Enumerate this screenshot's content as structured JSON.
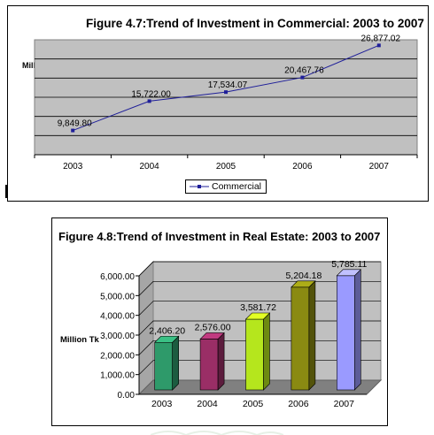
{
  "charts": [
    {
      "title": "Figure 4.7:Trend of Investment in Commercial: 2003 to 2007",
      "ylabel": "Million Taka",
      "legend": "Commercial"
    },
    {
      "title": "Figure 4.8:Trend of Investment in Real Estate: 2003 to 2007",
      "ylabel": "Million Tk"
    }
  ],
  "chart_data": [
    {
      "type": "line",
      "title": "Figure 4.7:Trend of Investment in Commercial: 2003 to 2007",
      "xlabel": "",
      "ylabel": "Million Taka",
      "categories": [
        "2003",
        "2004",
        "2005",
        "2006",
        "2007"
      ],
      "series": [
        {
          "name": "Commercial",
          "values": [
            9849.8,
            15722.0,
            17534.07,
            20467.76,
            26877.02
          ],
          "labels": [
            "9,849.80",
            "15,722.00",
            "17,534.07",
            "20,467.76",
            "26,877.02"
          ],
          "color": "#1f1f99"
        }
      ],
      "ylim": [
        5000,
        28000
      ],
      "grid": true,
      "plot_background": "#c0c0c0",
      "legend_position": "bottom"
    },
    {
      "type": "bar",
      "style": "3d",
      "title": "Figure 4.8:Trend of Investment in Real Estate: 2003 to 2007",
      "xlabel": "",
      "ylabel": "Million Tk",
      "categories": [
        "2003",
        "2004",
        "2005",
        "2006",
        "2007"
      ],
      "values": [
        2406.2,
        2576.0,
        3581.72,
        5204.18,
        5785.11
      ],
      "value_labels": [
        "2,406.20",
        "2,576.00",
        "3,581.72",
        "5,204.18",
        "5,785.11"
      ],
      "bar_colors": [
        "#2e9a6a",
        "#9a2e66",
        "#b5e61d",
        "#8a8a12",
        "#9a9aff"
      ],
      "yticks": [
        "0.00",
        "1,000.00",
        "2,000.00",
        "3,000.00",
        "4,000.00",
        "5,000.00",
        "6,000.00"
      ],
      "ylim": [
        0,
        6000
      ],
      "grid": true,
      "wall_color": "#c0c0c0",
      "floor_color": "#808080"
    }
  ]
}
